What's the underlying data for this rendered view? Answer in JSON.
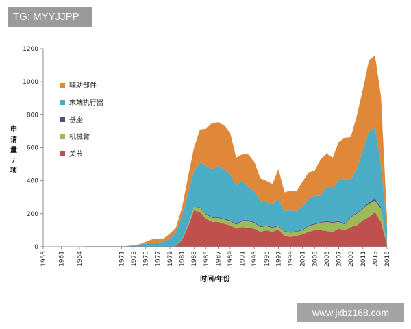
{
  "tag": "TG: MYYJJPP",
  "watermark": "www.jxbz168.com",
  "chart_data": {
    "type": "area",
    "stacked": true,
    "xlabel": "时间/年份",
    "ylabel": "申请量/项",
    "ylabel_chars": [
      "申",
      "请",
      "量",
      "/",
      "项"
    ],
    "xlim": [
      1958,
      2015
    ],
    "ylim": [
      0,
      1200
    ],
    "yticks": [
      0,
      200,
      400,
      600,
      800,
      1000,
      1200
    ],
    "xticks": [
      1958,
      1961,
      1964,
      1971,
      1973,
      1975,
      1977,
      1979,
      1981,
      1983,
      1985,
      1987,
      1989,
      1991,
      1993,
      1995,
      1997,
      1999,
      2001,
      2003,
      2005,
      2007,
      2009,
      2011,
      2013,
      2015
    ],
    "grid": false,
    "legend_position": "upper-left",
    "x": [
      1958,
      1961,
      1964,
      1965,
      1966,
      1967,
      1968,
      1969,
      1970,
      1971,
      1972,
      1973,
      1974,
      1975,
      1976,
      1977,
      1978,
      1979,
      1980,
      1981,
      1982,
      1983,
      1984,
      1985,
      1986,
      1987,
      1988,
      1989,
      1990,
      1991,
      1992,
      1993,
      1994,
      1995,
      1996,
      1997,
      1998,
      1999,
      2000,
      2001,
      2002,
      2003,
      2004,
      2005,
      2006,
      2007,
      2008,
      2009,
      2010,
      2011,
      2012,
      2013,
      2014,
      2015
    ],
    "series": [
      {
        "name": "关节",
        "color": "#c0504d",
        "values": [
          0,
          0,
          0,
          0,
          0,
          0,
          0,
          0,
          0,
          0,
          0,
          0,
          0,
          0,
          0,
          0,
          0,
          0,
          5,
          40,
          120,
          220,
          210,
          170,
          150,
          150,
          140,
          130,
          110,
          120,
          115,
          110,
          90,
          100,
          90,
          105,
          65,
          60,
          65,
          75,
          90,
          100,
          100,
          95,
          90,
          110,
          100,
          120,
          130,
          160,
          180,
          210,
          150,
          10
        ]
      },
      {
        "name": "机械臂",
        "color": "#9bbb59",
        "values": [
          0,
          0,
          0,
          0,
          0,
          0,
          0,
          0,
          0,
          0,
          0,
          0,
          0,
          0,
          0,
          0,
          0,
          0,
          0,
          5,
          10,
          20,
          25,
          25,
          25,
          25,
          25,
          25,
          25,
          35,
          40,
          35,
          30,
          25,
          25,
          20,
          25,
          25,
          25,
          25,
          35,
          35,
          45,
          55,
          55,
          40,
          35,
          60,
          70,
          70,
          80,
          70,
          80,
          10
        ]
      },
      {
        "name": "基座",
        "color": "#604a7b",
        "values": [
          0,
          0,
          0,
          0,
          0,
          0,
          0,
          0,
          0,
          0,
          0,
          0,
          0,
          0,
          0,
          0,
          0,
          0,
          0,
          0,
          0,
          0,
          5,
          5,
          5,
          5,
          5,
          5,
          5,
          5,
          5,
          5,
          5,
          5,
          5,
          5,
          5,
          5,
          5,
          5,
          5,
          5,
          5,
          5,
          5,
          5,
          5,
          5,
          5,
          5,
          10,
          10,
          10,
          0
        ]
      },
      {
        "name": "末端执行器",
        "color": "#4bacc6",
        "values": [
          0,
          0,
          0,
          2,
          2,
          2,
          2,
          2,
          2,
          2,
          3,
          5,
          10,
          20,
          25,
          25,
          30,
          50,
          80,
          140,
          190,
          220,
          270,
          290,
          290,
          310,
          300,
          280,
          230,
          240,
          200,
          190,
          150,
          140,
          140,
          160,
          120,
          130,
          120,
          140,
          160,
          170,
          160,
          210,
          200,
          250,
          270,
          220,
          270,
          350,
          430,
          430,
          250,
          100
        ]
      },
      {
        "name": "辅助部件",
        "color": "#e0883a",
        "values": [
          0,
          0,
          0,
          1,
          1,
          1,
          1,
          1,
          1,
          1,
          2,
          5,
          5,
          10,
          20,
          25,
          20,
          30,
          30,
          50,
          100,
          140,
          200,
          225,
          280,
          265,
          265,
          250,
          170,
          160,
          200,
          175,
          140,
          130,
          120,
          180,
          115,
          120,
          120,
          150,
          160,
          150,
          220,
          200,
          190,
          230,
          250,
          260,
          320,
          370,
          430,
          440,
          420,
          50
        ]
      }
    ]
  }
}
